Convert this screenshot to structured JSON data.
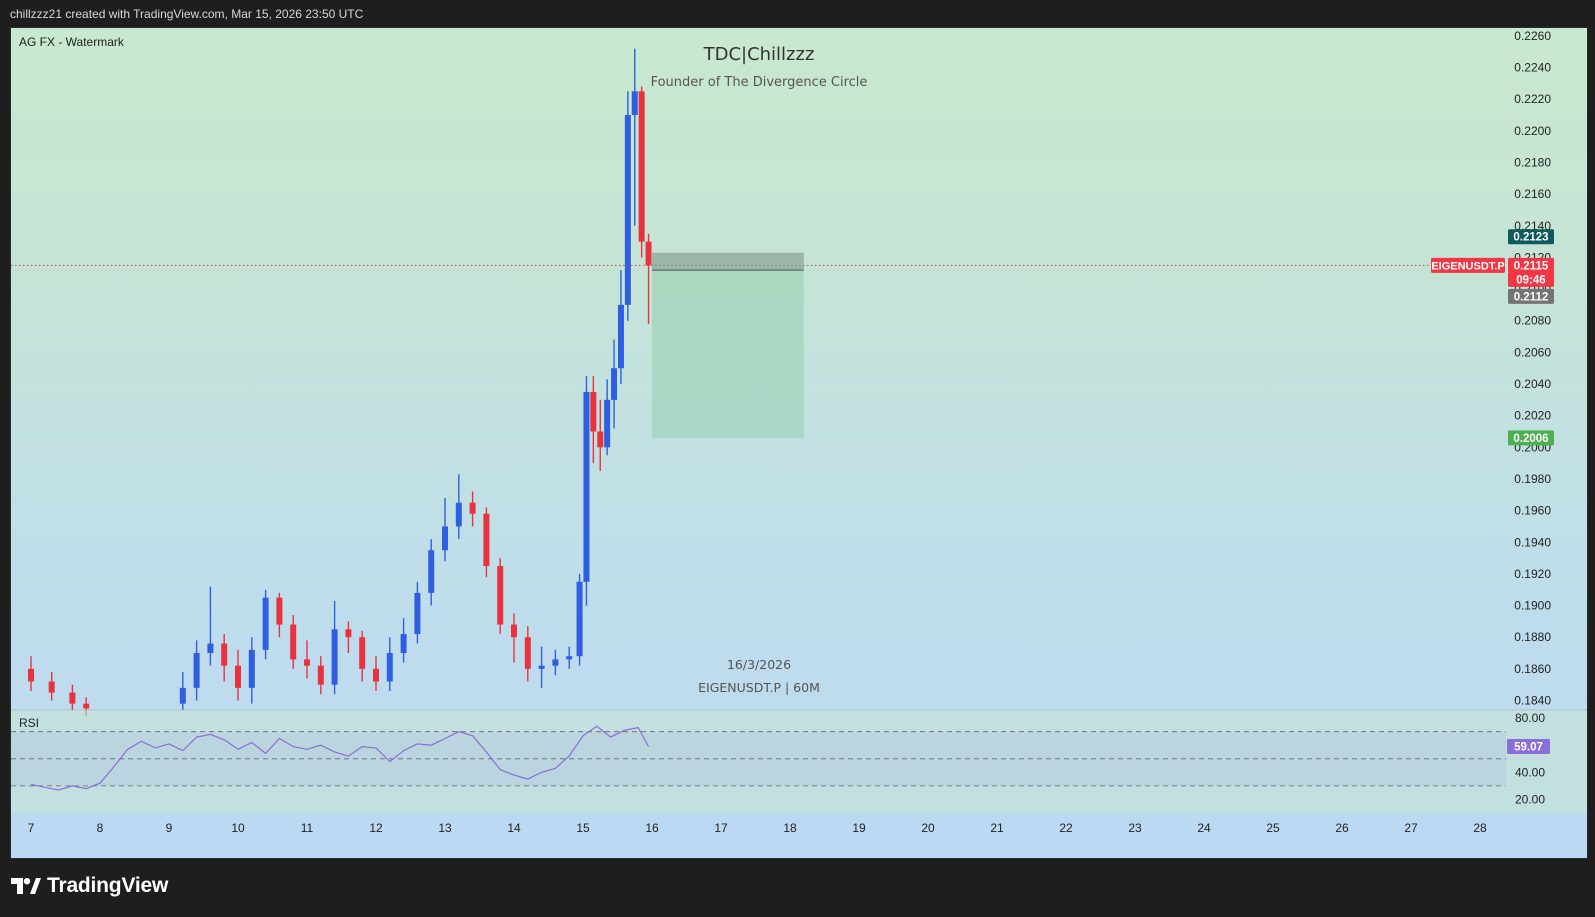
{
  "header": {
    "credit": "chillzzz21 created with TradingView.com, Mar 15, 2026 23:50 UTC"
  },
  "footer": {
    "brand": "TradingView"
  },
  "colors": {
    "up": "#2f5fe0",
    "down": "#e8333e",
    "rsi_line": "#8a6fd6",
    "price_tag": "#f23645",
    "entry_tag": "#0e5b5e",
    "stop_tag": "#757575",
    "target_tag": "#4caf50",
    "rsi_tag": "#8a6fd6"
  },
  "chart": {
    "indicator_label": "AG FX - Watermark",
    "watermark_title": "TDC|Chillzzz",
    "watermark_subtitle": "Founder of The Divergence Circle",
    "watermark_date": "16/3/2026",
    "watermark_symbol": "EIGENUSDT.P | 60M",
    "symbol_tag": "EIGENUSDT.P",
    "price_tag": "0.2115",
    "countdown_tag": "09:46",
    "entry_tag": "0.2123",
    "stop_tag": "0.2112",
    "target_tag": "0.2006",
    "rsi_label": "RSI",
    "rsi_value_tag": "59.07"
  },
  "chart_data": {
    "type": "candlestick",
    "title": "",
    "price_axis_ticks": [
      "0.2260",
      "0.2240",
      "0.2220",
      "0.2200",
      "0.2180",
      "0.2160",
      "0.2140",
      "0.2120",
      "0.2100",
      "0.2080",
      "0.2060",
      "0.2040",
      "0.2020",
      "0.2000",
      "0.1980",
      "0.1960",
      "0.1940",
      "0.1920",
      "0.1900",
      "0.1880",
      "0.1860",
      "0.1840"
    ],
    "ylim": [
      0.1834,
      0.2265
    ],
    "x_axis_ticks": [
      "7",
      "8",
      "9",
      "10",
      "11",
      "12",
      "13",
      "14",
      "15",
      "16",
      "17",
      "18",
      "19",
      "20",
      "21",
      "22",
      "23",
      "24",
      "25",
      "26",
      "27",
      "28"
    ],
    "series": [
      {
        "type": "candlestick",
        "x_day": [
          7.0,
          7.3,
          7.6,
          7.8,
          9.2,
          9.4,
          9.6,
          9.8,
          10.0,
          10.2,
          10.4,
          10.6,
          10.8,
          11.0,
          11.2,
          11.4,
          11.6,
          11.8,
          12.0,
          12.2,
          12.4,
          12.6,
          12.8,
          13.0,
          13.2,
          13.4,
          13.6,
          13.8,
          14.0,
          14.2,
          14.4,
          14.6,
          14.8,
          14.95,
          15.05,
          15.15,
          15.25,
          15.35,
          15.45,
          15.55,
          15.65,
          15.75,
          15.85,
          15.95
        ],
        "open": [
          0.186,
          0.1852,
          0.1845,
          0.1838,
          0.1838,
          0.1848,
          0.187,
          0.1876,
          0.1862,
          0.1848,
          0.1872,
          0.1905,
          0.1888,
          0.1866,
          0.1862,
          0.185,
          0.1885,
          0.188,
          0.186,
          0.1852,
          0.187,
          0.1882,
          0.1908,
          0.1935,
          0.195,
          0.1965,
          0.1958,
          0.1925,
          0.1888,
          0.188,
          0.186,
          0.1862,
          0.1866,
          0.1868,
          0.1915,
          0.2035,
          0.201,
          0.2,
          0.203,
          0.205,
          0.209,
          0.221,
          0.2225,
          0.213
        ],
        "close": [
          0.1852,
          0.1845,
          0.1838,
          0.1835,
          0.1848,
          0.187,
          0.1876,
          0.1862,
          0.1848,
          0.1872,
          0.1905,
          0.1888,
          0.1866,
          0.1862,
          0.185,
          0.1885,
          0.188,
          0.186,
          0.1852,
          0.187,
          0.1882,
          0.1908,
          0.1935,
          0.195,
          0.1965,
          0.1958,
          0.1925,
          0.1888,
          0.188,
          0.186,
          0.1862,
          0.1866,
          0.1868,
          0.1915,
          0.2035,
          0.201,
          0.2,
          0.203,
          0.205,
          0.209,
          0.221,
          0.2225,
          0.213,
          0.2115
        ],
        "high": [
          0.1868,
          0.1858,
          0.185,
          0.1842,
          0.1858,
          0.1878,
          0.1912,
          0.1882,
          0.1872,
          0.188,
          0.191,
          0.1908,
          0.1894,
          0.1878,
          0.1868,
          0.1903,
          0.189,
          0.1884,
          0.1868,
          0.188,
          0.1892,
          0.1915,
          0.1942,
          0.1968,
          0.1983,
          0.1972,
          0.1962,
          0.193,
          0.1895,
          0.1887,
          0.1874,
          0.1872,
          0.1874,
          0.192,
          0.2045,
          0.2045,
          0.203,
          0.2043,
          0.2068,
          0.2112,
          0.2225,
          0.2252,
          0.2228,
          0.2135
        ],
        "low": [
          0.1846,
          0.184,
          0.1834,
          0.183,
          0.1834,
          0.184,
          0.1862,
          0.1852,
          0.184,
          0.1838,
          0.1866,
          0.188,
          0.186,
          0.1854,
          0.1844,
          0.1844,
          0.187,
          0.1852,
          0.1846,
          0.1846,
          0.1864,
          0.1876,
          0.19,
          0.1928,
          0.1942,
          0.195,
          0.1918,
          0.1882,
          0.1864,
          0.1852,
          0.1848,
          0.1856,
          0.186,
          0.1862,
          0.19,
          0.199,
          0.1985,
          0.1995,
          0.2012,
          0.204,
          0.208,
          0.214,
          0.212,
          0.2078
        ]
      }
    ],
    "position": {
      "type": "short",
      "entry": 0.2123,
      "stop": 0.2112,
      "target": 0.2006,
      "x_start_day": 16.0,
      "x_end_day": 18.2
    },
    "current_price": 0.2115,
    "rsi": {
      "axis_ticks": [
        "80.00",
        "40.00",
        "20.00"
      ],
      "ylim": [
        10,
        86
      ],
      "levels": [
        70,
        50,
        30
      ],
      "last_value": 59.07,
      "x_day": [
        7.0,
        7.2,
        7.4,
        7.6,
        7.8,
        8.0,
        8.2,
        8.4,
        8.6,
        8.8,
        9.0,
        9.2,
        9.4,
        9.6,
        9.8,
        10.0,
        10.2,
        10.4,
        10.6,
        10.8,
        11.0,
        11.2,
        11.4,
        11.6,
        11.8,
        12.0,
        12.2,
        12.4,
        12.6,
        12.8,
        13.0,
        13.2,
        13.4,
        13.6,
        13.8,
        14.0,
        14.2,
        14.4,
        14.6,
        14.8,
        15.0,
        15.2,
        15.4,
        15.6,
        15.8,
        15.95
      ],
      "values": [
        31,
        29,
        27,
        30,
        28,
        32,
        44,
        57,
        63,
        58,
        61,
        56,
        66,
        68,
        64,
        57,
        62,
        54,
        65,
        59,
        57,
        60,
        55,
        52,
        59,
        58,
        48,
        56,
        61,
        60,
        65,
        70,
        67,
        55,
        42,
        38,
        35,
        40,
        43,
        52,
        67,
        74,
        66,
        71,
        73,
        59
      ]
    }
  }
}
